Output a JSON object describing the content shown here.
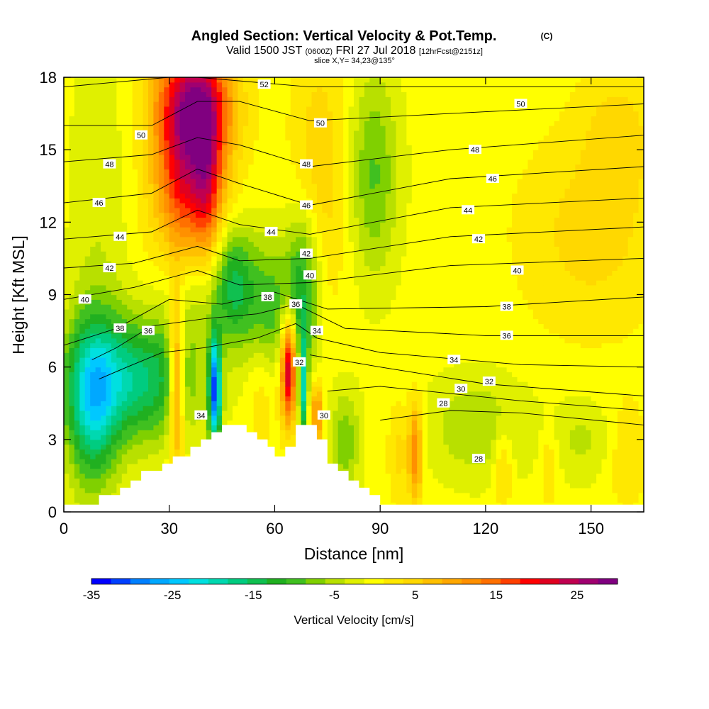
{
  "header": {
    "title": "Angled Section: Vertical Velocity & Pot.Temp.",
    "title_mark": "(C)",
    "valid_prefix": "Valid 1500 JST",
    "valid_utc": "(0600Z)",
    "valid_date": "FRI 27 Jul 2018",
    "forecast_info": "[12hrFcst@2151z]",
    "slice": "slice X,Y= 34,23@135°"
  },
  "chart_data": {
    "type": "heatmap",
    "xlabel": "Distance [nm]",
    "ylabel": "Height [Kft MSL]",
    "xlim": [
      0,
      165
    ],
    "ylim": [
      0,
      18
    ],
    "xticks": [
      0,
      30,
      60,
      90,
      120,
      150
    ],
    "yticks": [
      0,
      3,
      6,
      9,
      12,
      15,
      18
    ],
    "colorbar": {
      "label": "Vertical Velocity [cm/s]",
      "min": -35,
      "max": 30,
      "step": 2.5,
      "tick_values": [
        -35,
        -25,
        -15,
        -5,
        5,
        15,
        25
      ],
      "colors": [
        "#0000ff",
        "#0040ff",
        "#0080ff",
        "#00a8ff",
        "#00c8ff",
        "#00e0e0",
        "#00d8b0",
        "#00cc80",
        "#10c050",
        "#20b020",
        "#40c020",
        "#80d000",
        "#b8e000",
        "#e0f000",
        "#ffff00",
        "#ffe800",
        "#ffd800",
        "#ffc000",
        "#ffa800",
        "#ff9000",
        "#ff7000",
        "#ff4000",
        "#ff0000",
        "#e00020",
        "#c00050",
        "#a00070",
        "#800080"
      ]
    },
    "terrain": [
      [
        0,
        0.3
      ],
      [
        10,
        0.3
      ],
      [
        10,
        0.7
      ],
      [
        16,
        0.7
      ],
      [
        16,
        1.0
      ],
      [
        19,
        1.0
      ],
      [
        19,
        1.3
      ],
      [
        22,
        1.3
      ],
      [
        22,
        1.7
      ],
      [
        28,
        1.7
      ],
      [
        28,
        2.0
      ],
      [
        31,
        2.0
      ],
      [
        31,
        2.3
      ],
      [
        36,
        2.3
      ],
      [
        36,
        2.7
      ],
      [
        39,
        2.7
      ],
      [
        39,
        3.0
      ],
      [
        42,
        3.0
      ],
      [
        42,
        3.3
      ],
      [
        45,
        3.3
      ],
      [
        45,
        3.6
      ],
      [
        52,
        3.6
      ],
      [
        52,
        3.3
      ],
      [
        55,
        3.3
      ],
      [
        55,
        3.0
      ],
      [
        58,
        3.0
      ],
      [
        58,
        2.7
      ],
      [
        60,
        2.7
      ],
      [
        60,
        2.3
      ],
      [
        63,
        2.3
      ],
      [
        63,
        2.7
      ],
      [
        66,
        2.7
      ],
      [
        66,
        3.6
      ],
      [
        72,
        3.6
      ],
      [
        72,
        3.0
      ],
      [
        75,
        3.0
      ],
      [
        75,
        2.0
      ],
      [
        78,
        2.0
      ],
      [
        78,
        1.7
      ],
      [
        81,
        1.7
      ],
      [
        81,
        1.3
      ],
      [
        84,
        1.3
      ],
      [
        84,
        1.0
      ],
      [
        87,
        1.0
      ],
      [
        87,
        0.7
      ],
      [
        90,
        0.7
      ],
      [
        90,
        0.3
      ],
      [
        165,
        0.3
      ]
    ],
    "velocity_field": [
      {
        "x": 36,
        "y": 14.5,
        "sx": 7,
        "sy": 3.5,
        "v": 25
      },
      {
        "x": 41,
        "y": 14,
        "sx": 2.5,
        "sy": 2.5,
        "v": 8
      },
      {
        "x": 38,
        "y": 17,
        "sx": 8,
        "sy": 1.5,
        "v": 12
      },
      {
        "x": 73,
        "y": 14,
        "sx": 6,
        "sy": 4,
        "v": 6
      },
      {
        "x": 88,
        "y": 14,
        "sx": 5,
        "sy": 3,
        "v": -9
      },
      {
        "x": 10,
        "y": 12,
        "sx": 6,
        "sy": 6,
        "v": -3
      },
      {
        "x": 150,
        "y": 11.5,
        "sx": 15,
        "sy": 3,
        "v": 5
      },
      {
        "x": 158,
        "y": 16,
        "sx": 8,
        "sy": 2,
        "v": 4
      },
      {
        "x": 20,
        "y": 5.5,
        "sx": 12,
        "sy": 1.8,
        "v": -17
      },
      {
        "x": 8,
        "y": 4.5,
        "sx": 5,
        "sy": 2.5,
        "v": -16
      },
      {
        "x": 36,
        "y": 9.5,
        "sx": 6,
        "sy": 2,
        "v": -9
      },
      {
        "x": 48,
        "y": 9.5,
        "sx": 4,
        "sy": 1.8,
        "v": -14
      },
      {
        "x": 58,
        "y": 8.5,
        "sx": 5,
        "sy": 2,
        "v": -10
      },
      {
        "x": 68,
        "y": 9,
        "sx": 3.5,
        "sy": 2.5,
        "v": -14
      },
      {
        "x": 32,
        "y": 5.5,
        "sx": 1.5,
        "sy": 2.5,
        "v": 18
      },
      {
        "x": 43,
        "y": 5,
        "sx": 1.2,
        "sy": 1.6,
        "v": -30
      },
      {
        "x": 56,
        "y": 5,
        "sx": 3,
        "sy": 1.8,
        "v": 4
      },
      {
        "x": 64,
        "y": 6,
        "sx": 1.6,
        "sy": 1.6,
        "v": 28
      },
      {
        "x": 68,
        "y": 5,
        "sx": 0.8,
        "sy": 1.5,
        "v": -18
      },
      {
        "x": 72,
        "y": 4,
        "sx": 1.2,
        "sy": 1,
        "v": 15
      },
      {
        "x": 80,
        "y": 3,
        "sx": 3,
        "sy": 1.5,
        "v": -8
      },
      {
        "x": 100,
        "y": 2.5,
        "sx": 1.5,
        "sy": 1.5,
        "v": 14
      },
      {
        "x": 95,
        "y": 2.5,
        "sx": 2,
        "sy": 1.5,
        "v": 5
      },
      {
        "x": 118,
        "y": 3.5,
        "sx": 10,
        "sy": 1.5,
        "v": -6
      },
      {
        "x": 125,
        "y": 2,
        "sx": 2,
        "sy": 1.2,
        "v": 6
      },
      {
        "x": 138,
        "y": 2,
        "sx": 2,
        "sy": 1.2,
        "v": 5
      },
      {
        "x": 148,
        "y": 3,
        "sx": 8,
        "sy": 1.2,
        "v": -4
      },
      {
        "x": 160,
        "y": 2.5,
        "sx": 4,
        "sy": 1.5,
        "v": 5
      }
    ],
    "theta_isolines": [
      {
        "theta": 52,
        "points": [
          [
            0,
            17.6
          ],
          [
            30,
            18
          ],
          [
            38,
            18
          ],
          [
            70,
            17.6
          ],
          [
            165,
            17.6
          ]
        ]
      },
      {
        "theta": 50,
        "points": [
          [
            0,
            16
          ],
          [
            25,
            16
          ],
          [
            38,
            17
          ],
          [
            50,
            17
          ],
          [
            70,
            16.2
          ],
          [
            110,
            16.5
          ],
          [
            165,
            16.9
          ]
        ]
      },
      {
        "theta": 48,
        "points": [
          [
            0,
            14.5
          ],
          [
            25,
            14.8
          ],
          [
            38,
            15.5
          ],
          [
            50,
            15.2
          ],
          [
            70,
            14.3
          ],
          [
            110,
            15
          ],
          [
            165,
            15.6
          ]
        ]
      },
      {
        "theta": 46,
        "points": [
          [
            0,
            12.8
          ],
          [
            25,
            13.2
          ],
          [
            38,
            14.2
          ],
          [
            50,
            13.6
          ],
          [
            70,
            12.7
          ],
          [
            110,
            13.8
          ],
          [
            165,
            14.3
          ]
        ]
      },
      {
        "theta": 44,
        "points": [
          [
            0,
            11.3
          ],
          [
            25,
            11.6
          ],
          [
            38,
            12.5
          ],
          [
            50,
            11.9
          ],
          [
            70,
            11.5
          ],
          [
            110,
            12.6
          ],
          [
            165,
            13
          ]
        ]
      },
      {
        "theta": 42,
        "points": [
          [
            0,
            10.1
          ],
          [
            20,
            10.3
          ],
          [
            38,
            11
          ],
          [
            50,
            10.4
          ],
          [
            70,
            10.5
          ],
          [
            110,
            11.4
          ],
          [
            165,
            11.8
          ]
        ]
      },
      {
        "theta": 40,
        "points": [
          [
            0,
            8.8
          ],
          [
            20,
            9.3
          ],
          [
            38,
            10
          ],
          [
            50,
            9.4
          ],
          [
            70,
            9.5
          ],
          [
            110,
            10.2
          ],
          [
            165,
            10.5
          ]
        ]
      },
      {
        "theta": 38,
        "points": [
          [
            0,
            6.9
          ],
          [
            15,
            7.6
          ],
          [
            30,
            8.8
          ],
          [
            45,
            8.6
          ],
          [
            60,
            9.1
          ],
          [
            75,
            8.4
          ],
          [
            120,
            8.5
          ],
          [
            165,
            8.9
          ]
        ]
      },
      {
        "theta": 36,
        "points": [
          [
            8,
            6.3
          ],
          [
            15,
            6.8
          ],
          [
            25,
            7.7
          ],
          [
            40,
            8
          ],
          [
            55,
            8.2
          ],
          [
            66,
            8.6
          ],
          [
            80,
            7.6
          ],
          [
            120,
            7.3
          ],
          [
            165,
            7.3
          ]
        ]
      },
      {
        "theta": 34,
        "points": [
          [
            10,
            5.5
          ],
          [
            18,
            6
          ],
          [
            28,
            6.6
          ],
          [
            40,
            6.8
          ],
          [
            55,
            7.2
          ],
          [
            66,
            7.8
          ],
          [
            72,
            7.2
          ],
          [
            90,
            6.6
          ],
          [
            130,
            6.1
          ],
          [
            165,
            6
          ]
        ]
      },
      {
        "theta": 32,
        "points": [
          [
            70,
            6.5
          ],
          [
            90,
            6
          ],
          [
            120,
            5.3
          ],
          [
            165,
            4.8
          ]
        ]
      },
      {
        "theta": 30,
        "points": [
          [
            75,
            5
          ],
          [
            90,
            5.2
          ],
          [
            110,
            4.9
          ],
          [
            130,
            4.6
          ],
          [
            165,
            4.2
          ]
        ]
      },
      {
        "theta": 28,
        "points": [
          [
            90,
            3.8
          ],
          [
            110,
            4.2
          ],
          [
            130,
            4.1
          ],
          [
            165,
            3.6
          ]
        ]
      }
    ],
    "contour_labels": [
      {
        "text": "52",
        "x": 57,
        "y": 17.7
      },
      {
        "text": "50",
        "x": 22,
        "y": 15.6
      },
      {
        "text": "50",
        "x": 73,
        "y": 16.1
      },
      {
        "text": "50",
        "x": 130,
        "y": 16.9
      },
      {
        "text": "48",
        "x": 13,
        "y": 14.4
      },
      {
        "text": "48",
        "x": 69,
        "y": 14.4
      },
      {
        "text": "48",
        "x": 117,
        "y": 15
      },
      {
        "text": "46",
        "x": 10,
        "y": 12.8
      },
      {
        "text": "46",
        "x": 69,
        "y": 12.7
      },
      {
        "text": "46",
        "x": 122,
        "y": 13.8
      },
      {
        "text": "44",
        "x": 16,
        "y": 11.4
      },
      {
        "text": "44",
        "x": 59,
        "y": 11.6
      },
      {
        "text": "44",
        "x": 115,
        "y": 12.5
      },
      {
        "text": "42",
        "x": 13,
        "y": 10.1
      },
      {
        "text": "42",
        "x": 69,
        "y": 10.7
      },
      {
        "text": "42",
        "x": 118,
        "y": 11.3
      },
      {
        "text": "40",
        "x": 6,
        "y": 8.8
      },
      {
        "text": "40",
        "x": 70,
        "y": 9.8
      },
      {
        "text": "40",
        "x": 129,
        "y": 10
      },
      {
        "text": "38",
        "x": 16,
        "y": 7.6
      },
      {
        "text": "38",
        "x": 58,
        "y": 8.9
      },
      {
        "text": "38",
        "x": 126,
        "y": 8.5
      },
      {
        "text": "36",
        "x": 24,
        "y": 7.5
      },
      {
        "text": "36",
        "x": 66,
        "y": 8.6
      },
      {
        "text": "36",
        "x": 126,
        "y": 7.3
      },
      {
        "text": "34",
        "x": 72,
        "y": 7.5
      },
      {
        "text": "34",
        "x": 111,
        "y": 6.3
      },
      {
        "text": "34",
        "x": 39,
        "y": 4
      },
      {
        "text": "32",
        "x": 67,
        "y": 6.2
      },
      {
        "text": "32",
        "x": 121,
        "y": 5.4
      },
      {
        "text": "30",
        "x": 74,
        "y": 4
      },
      {
        "text": "30",
        "x": 113,
        "y": 5.1
      },
      {
        "text": "28",
        "x": 108,
        "y": 4.5
      },
      {
        "text": "28",
        "x": 118,
        "y": 2.2
      }
    ]
  }
}
